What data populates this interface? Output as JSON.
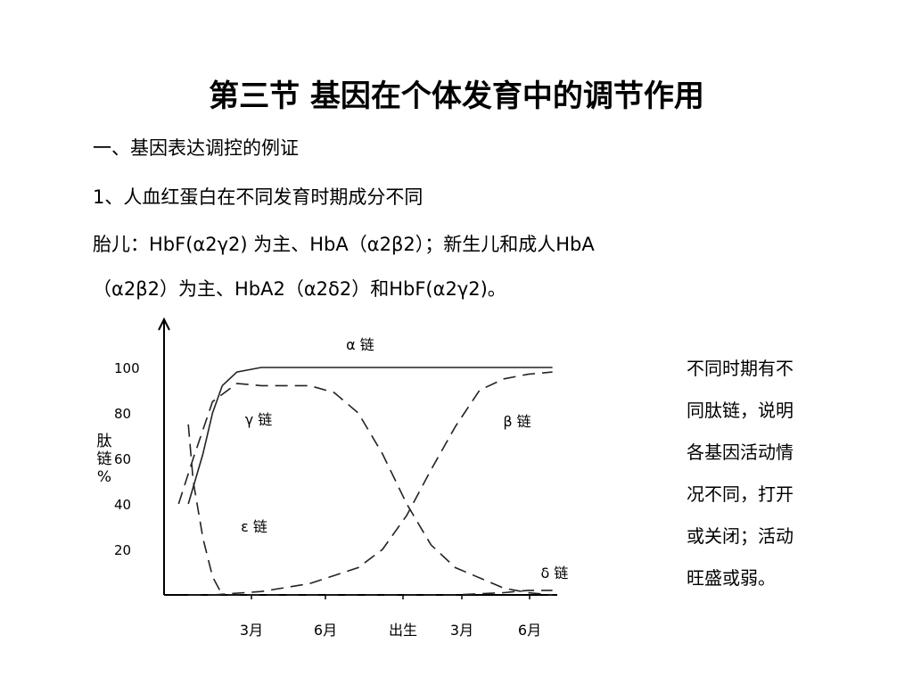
{
  "title": "第三节 基因在个体发育中的调节作用",
  "heading": "一、基因表达调控的例证",
  "subheading": "1、人血红蛋白在不同发育时期成分不同",
  "paragraph_line1": "胎儿：HbF(α2γ2) 为主、HbA（α2β2）；新生儿和成人HbA",
  "paragraph_line2": "（α2β2）为主、HbA2（α2δ2）和HbF(α2γ2)。",
  "side_note": [
    "不同时期有不",
    "同肽链，说明",
    "各基因活动情",
    "况不同，打开",
    "或关闭；活动",
    "旺盛或弱。"
  ],
  "chart_data": {
    "type": "line",
    "ylabel": "肽链%",
    "ytick_labels": [
      "100",
      "80",
      "60",
      "40",
      "20"
    ],
    "xtick_labels": [
      "3月",
      "6月",
      "出生",
      "3月",
      "6月"
    ],
    "ylim": [
      0,
      100
    ],
    "grid": false,
    "series": [
      {
        "name": "α 链",
        "style": "solid",
        "x": [
          0.5,
          0.8,
          1.0,
          1.2,
          1.5,
          2,
          3,
          4,
          5,
          6,
          7,
          8
        ],
        "y": [
          40,
          62,
          80,
          92,
          98,
          100,
          100,
          100,
          100,
          100,
          100,
          100
        ]
      },
      {
        "name": "γ 链",
        "style": "dashed",
        "x": [
          0.3,
          0.6,
          1.0,
          1.5,
          2,
          3,
          3.5,
          4,
          4.5,
          5,
          5.5,
          6,
          7,
          7.5,
          8
        ],
        "y": [
          40,
          60,
          85,
          93,
          92,
          92,
          89,
          80,
          62,
          40,
          22,
          12,
          3,
          1,
          0
        ]
      },
      {
        "name": "β 链",
        "style": "dashed",
        "x": [
          1.0,
          2,
          3,
          4,
          4.5,
          5,
          5.5,
          6,
          6.5,
          7,
          7.5,
          8
        ],
        "y": [
          0,
          1.5,
          5,
          12,
          20,
          35,
          55,
          74,
          90,
          95,
          97,
          98
        ]
      },
      {
        "name": "ε 链",
        "style": "dashed",
        "x": [
          0.5,
          0.6,
          0.8,
          1.0,
          1.2
        ],
        "y": [
          75,
          50,
          25,
          8,
          0
        ]
      },
      {
        "name": "δ 链",
        "style": "dashed",
        "x": [
          0.5,
          2,
          4,
          6,
          7,
          7.5,
          8
        ],
        "y": [
          0,
          0,
          0,
          0,
          1,
          2,
          2
        ]
      }
    ]
  }
}
